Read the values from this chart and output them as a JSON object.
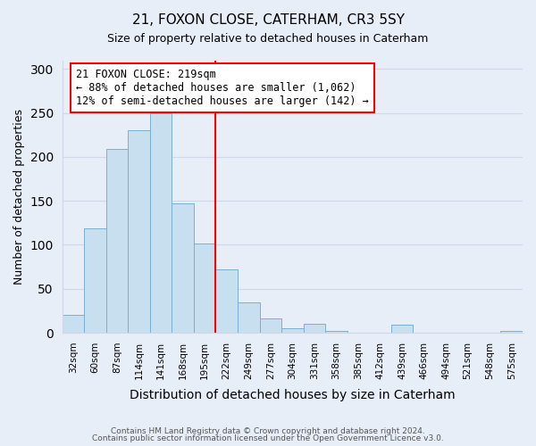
{
  "title": "21, FOXON CLOSE, CATERHAM, CR3 5SY",
  "subtitle": "Size of property relative to detached houses in Caterham",
  "xlabel": "Distribution of detached houses by size in Caterham",
  "ylabel": "Number of detached properties",
  "bar_labels": [
    "32sqm",
    "60sqm",
    "87sqm",
    "114sqm",
    "141sqm",
    "168sqm",
    "195sqm",
    "222sqm",
    "249sqm",
    "277sqm",
    "304sqm",
    "331sqm",
    "358sqm",
    "385sqm",
    "412sqm",
    "439sqm",
    "466sqm",
    "494sqm",
    "521sqm",
    "548sqm",
    "575sqm"
  ],
  "bar_values": [
    20,
    119,
    209,
    230,
    250,
    147,
    101,
    72,
    35,
    16,
    5,
    10,
    2,
    0,
    0,
    9,
    0,
    0,
    0,
    0,
    2
  ],
  "bar_color": "#c8dff0",
  "bar_edge_color": "#7ab0d4",
  "ylim": [
    0,
    310
  ],
  "yticks": [
    0,
    50,
    100,
    150,
    200,
    250,
    300
  ],
  "property_label": "21 FOXON CLOSE: 219sqm",
  "annotation_line1": "← 88% of detached houses are smaller (1,062)",
  "annotation_line2": "12% of semi-detached houses are larger (142) →",
  "footer_line1": "Contains HM Land Registry data © Crown copyright and database right 2024.",
  "footer_line2": "Contains public sector information licensed under the Open Government Licence v3.0.",
  "background_color": "#e8eef8",
  "grid_color": "#d0d8e8",
  "vline_bin_index": 7
}
